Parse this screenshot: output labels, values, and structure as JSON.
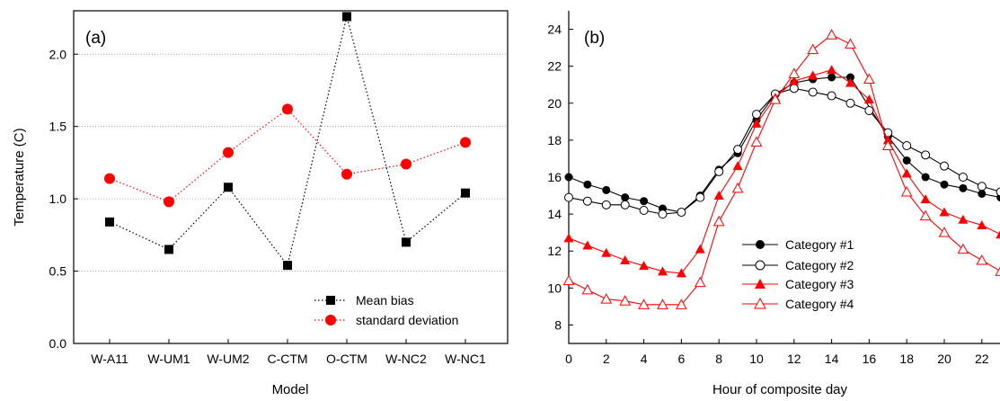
{
  "chart_data": [
    {
      "type": "line",
      "panel_label": "(a)",
      "xlabel": "Model",
      "ylabel": "Temperature (C)",
      "categories": [
        "W-A11",
        "W-UM1",
        "W-UM2",
        "C-CTM",
        "O-CTM",
        "W-NC2",
        "W-NC1"
      ],
      "ylim": [
        0,
        2.3
      ],
      "yticks": [
        "0.0",
        "0.5",
        "1.0",
        "1.5",
        "2.0"
      ],
      "grid": "horizontal dotted",
      "legend_position": "bottom-right",
      "series": [
        {
          "name": "Mean bias",
          "color": "#000000",
          "marker": "square",
          "values": [
            0.84,
            0.65,
            1.08,
            0.54,
            2.26,
            0.7,
            1.04
          ]
        },
        {
          "name": "standard deviation",
          "color": "#ff0000",
          "marker": "circle",
          "values": [
            1.14,
            0.98,
            1.32,
            1.62,
            1.17,
            1.24,
            1.39
          ]
        }
      ]
    },
    {
      "type": "line",
      "panel_label": "(b)",
      "xlabel": "Hour of composite day",
      "ylabel": "",
      "x": [
        0,
        1,
        2,
        3,
        4,
        5,
        6,
        7,
        8,
        9,
        10,
        11,
        12,
        13,
        14,
        15,
        16,
        17,
        18,
        19,
        20,
        21,
        22,
        23
      ],
      "xlim": [
        0,
        23
      ],
      "ylim": [
        7,
        25
      ],
      "xticks": [
        "0",
        "2",
        "4",
        "6",
        "8",
        "10",
        "12",
        "14",
        "16",
        "18",
        "20",
        "22"
      ],
      "yticks": [
        "8",
        "10",
        "12",
        "14",
        "16",
        "18",
        "20",
        "22",
        "24"
      ],
      "legend_position": "center-left",
      "series": [
        {
          "name": "Category #1",
          "color": "#000000",
          "marker": "filled-circle",
          "values": [
            16.0,
            15.6,
            15.3,
            14.9,
            14.7,
            14.3,
            14.1,
            15.0,
            16.4,
            17.3,
            19.1,
            20.5,
            21.1,
            21.3,
            21.4,
            21.4,
            null,
            18.2,
            16.9,
            16.0,
            15.6,
            15.4,
            15.1,
            14.9
          ]
        },
        {
          "name": "Category #2",
          "color": "#000000",
          "marker": "open-circle",
          "values": [
            14.9,
            14.7,
            14.5,
            14.5,
            14.2,
            14.0,
            14.1,
            14.9,
            16.3,
            17.5,
            19.4,
            20.5,
            20.8,
            20.6,
            20.4,
            20.0,
            19.6,
            18.4,
            17.7,
            17.2,
            16.6,
            16.0,
            15.5,
            15.2
          ]
        },
        {
          "name": "Category #3",
          "color": "#ff0000",
          "marker": "filled-triangle",
          "values": [
            12.7,
            12.3,
            11.9,
            11.5,
            11.2,
            10.9,
            10.8,
            12.1,
            15.0,
            16.6,
            18.9,
            20.3,
            21.2,
            21.5,
            21.8,
            21.1,
            20.2,
            18.0,
            16.2,
            14.8,
            14.1,
            13.7,
            13.4,
            12.9
          ]
        },
        {
          "name": "Category #4",
          "color": "#ff0000",
          "marker": "open-triangle",
          "values": [
            10.4,
            9.9,
            9.4,
            9.3,
            9.1,
            9.1,
            9.1,
            10.3,
            13.6,
            15.4,
            17.9,
            20.2,
            21.6,
            22.9,
            23.7,
            23.2,
            21.3,
            17.7,
            15.2,
            13.9,
            13.0,
            12.1,
            11.5,
            10.9
          ]
        }
      ]
    }
  ]
}
